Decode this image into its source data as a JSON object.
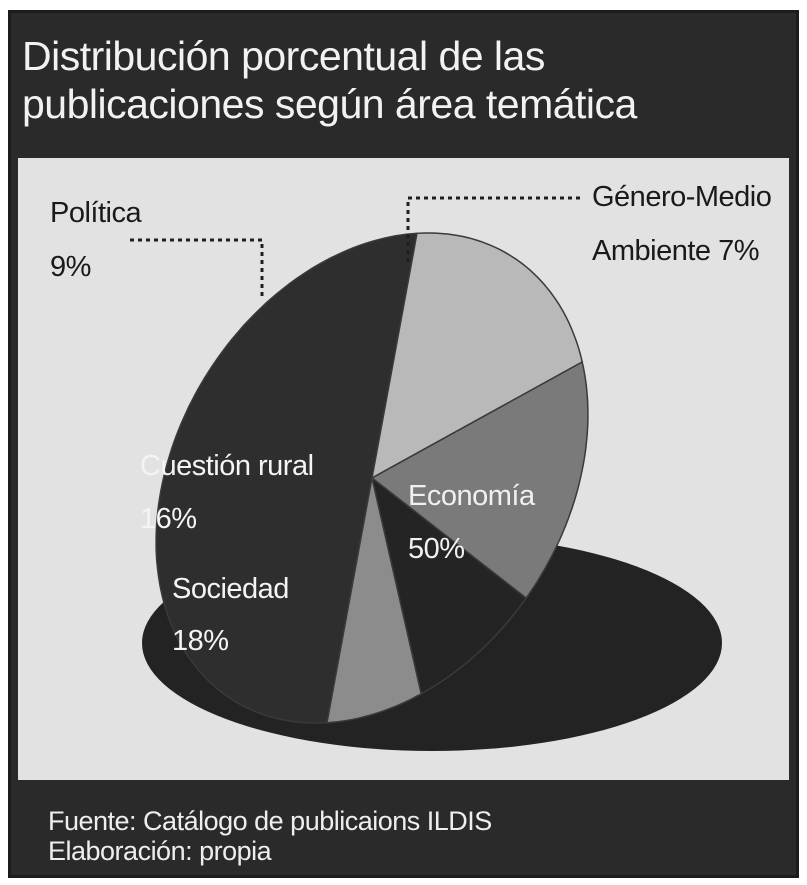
{
  "chart_data": {
    "type": "pie",
    "title_lines": [
      "Distribución porcentual de las",
      "publicaciones según área temática"
    ],
    "slices": [
      {
        "label": "Economía",
        "pct": "50%",
        "value": 50,
        "color": "#2e2e2e",
        "text_color": "#f0f0f0"
      },
      {
        "label": "Sociedad",
        "pct": "18%",
        "value": 18,
        "color": "#b9b9b9",
        "text_color": "#f4f4f4"
      },
      {
        "label": "Cuestión rural",
        "pct": "16%",
        "value": 16,
        "color": "#7a7a7a",
        "text_color": "#f4f4f4"
      },
      {
        "label": "Política",
        "pct": "9%",
        "value": 9,
        "color": "#242424",
        "text_color": "#1a1a1a"
      },
      {
        "label": "Género-Medio",
        "label2": "Ambiente 7%",
        "value": 7,
        "color": "#8c8c8c",
        "text_color": "#1a1a1a"
      }
    ],
    "legend": "none",
    "grid": false
  },
  "footer": {
    "source": "Fuente: Catálogo de publicaions ILDIS",
    "elaboration": "Elaboración: propia"
  },
  "colors": {
    "frame": "#2a2a2a",
    "plot_background": "#e2e2e2",
    "shadow": "#232323"
  }
}
